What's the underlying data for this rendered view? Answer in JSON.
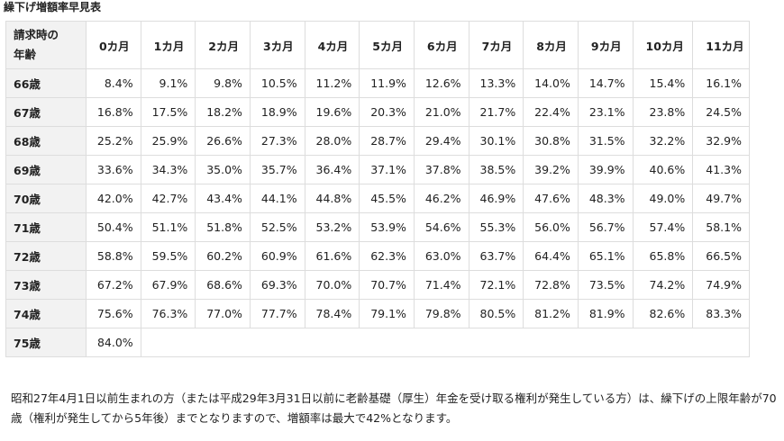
{
  "title": "繰下げ増額率早見表",
  "corner_header_line1": "請求時の",
  "corner_header_line2": "年齢",
  "months": [
    "0カ月",
    "1カ月",
    "2カ月",
    "3カ月",
    "4カ月",
    "5カ月",
    "6カ月",
    "7カ月",
    "8カ月",
    "9カ月",
    "10カ月",
    "11カ月"
  ],
  "rows": [
    {
      "age": "66歳",
      "values": [
        "8.4%",
        "9.1%",
        "9.8%",
        "10.5%",
        "11.2%",
        "11.9%",
        "12.6%",
        "13.3%",
        "14.0%",
        "14.7%",
        "15.4%",
        "16.1%"
      ]
    },
    {
      "age": "67歳",
      "values": [
        "16.8%",
        "17.5%",
        "18.2%",
        "18.9%",
        "19.6%",
        "20.3%",
        "21.0%",
        "21.7%",
        "22.4%",
        "23.1%",
        "23.8%",
        "24.5%"
      ]
    },
    {
      "age": "68歳",
      "values": [
        "25.2%",
        "25.9%",
        "26.6%",
        "27.3%",
        "28.0%",
        "28.7%",
        "29.4%",
        "30.1%",
        "30.8%",
        "31.5%",
        "32.2%",
        "32.9%"
      ]
    },
    {
      "age": "69歳",
      "values": [
        "33.6%",
        "34.3%",
        "35.0%",
        "35.7%",
        "36.4%",
        "37.1%",
        "37.8%",
        "38.5%",
        "39.2%",
        "39.9%",
        "40.6%",
        "41.3%"
      ]
    },
    {
      "age": "70歳",
      "values": [
        "42.0%",
        "42.7%",
        "43.4%",
        "44.1%",
        "44.8%",
        "45.5%",
        "46.2%",
        "46.9%",
        "47.6%",
        "48.3%",
        "49.0%",
        "49.7%"
      ]
    },
    {
      "age": "71歳",
      "values": [
        "50.4%",
        "51.1%",
        "51.8%",
        "52.5%",
        "53.2%",
        "53.9%",
        "54.6%",
        "55.3%",
        "56.0%",
        "56.7%",
        "57.4%",
        "58.1%"
      ]
    },
    {
      "age": "72歳",
      "values": [
        "58.8%",
        "59.5%",
        "60.2%",
        "60.9%",
        "61.6%",
        "62.3%",
        "63.0%",
        "63.7%",
        "64.4%",
        "65.1%",
        "65.8%",
        "66.5%"
      ]
    },
    {
      "age": "73歳",
      "values": [
        "67.2%",
        "67.9%",
        "68.6%",
        "69.3%",
        "70.0%",
        "70.7%",
        "71.4%",
        "72.1%",
        "72.8%",
        "73.5%",
        "74.2%",
        "74.9%"
      ]
    },
    {
      "age": "74歳",
      "values": [
        "75.6%",
        "76.3%",
        "77.0%",
        "77.7%",
        "78.4%",
        "79.1%",
        "79.8%",
        "80.5%",
        "81.2%",
        "81.9%",
        "82.6%",
        "83.3%"
      ]
    }
  ],
  "last_row": {
    "age": "75歳",
    "value": "84.0%"
  },
  "footnote": "昭和27年4月1日以前生まれの方（または平成29年3月31日以前に老齢基礎（厚生）年金を受け取る権利が発生している方）は、繰下げの上限年齢が70歳（権利が発生してから5年後）までとなりますので、増額率は最大で42%となります。"
}
